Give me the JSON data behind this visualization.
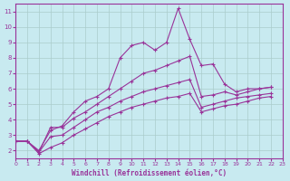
{
  "title": "",
  "xlabel": "Windchill (Refroidissement éolien,°C)",
  "ylabel": "",
  "background_color": "#c8eaf0",
  "line_color": "#993399",
  "grid_color": "#aacccc",
  "xlim": [
    0,
    23
  ],
  "ylim": [
    1.5,
    11.5
  ],
  "yticks": [
    2,
    3,
    4,
    5,
    6,
    7,
    8,
    9,
    10,
    11
  ],
  "xticks": [
    0,
    1,
    2,
    3,
    4,
    5,
    6,
    7,
    8,
    9,
    10,
    11,
    12,
    13,
    14,
    15,
    16,
    17,
    18,
    19,
    20,
    21,
    22,
    23
  ],
  "series": [
    {
      "x": [
        0,
        1,
        2,
        3,
        4,
        5,
        6,
        7,
        8,
        9,
        10,
        11,
        12,
        13,
        14,
        15,
        16,
        17,
        18,
        19,
        20,
        21,
        22
      ],
      "y": [
        2.6,
        2.6,
        2.0,
        3.3,
        3.6,
        4.5,
        5.2,
        5.5,
        6.0,
        8.0,
        8.8,
        9.0,
        8.5,
        9.0,
        11.2,
        9.2,
        7.5,
        7.6,
        6.3,
        5.8,
        6.0,
        6.0,
        6.1
      ]
    },
    {
      "x": [
        0,
        1,
        2,
        3,
        4,
        5,
        6,
        7,
        8,
        9,
        10,
        11,
        12,
        13,
        14,
        15,
        16,
        17,
        18,
        19,
        20,
        21,
        22
      ],
      "y": [
        2.6,
        2.6,
        1.9,
        3.5,
        3.5,
        4.1,
        4.5,
        5.0,
        5.5,
        6.0,
        6.5,
        7.0,
        7.2,
        7.5,
        7.8,
        8.1,
        5.5,
        5.6,
        5.8,
        5.6,
        5.8,
        6.0,
        6.1
      ]
    },
    {
      "x": [
        0,
        1,
        2,
        3,
        4,
        5,
        6,
        7,
        8,
        9,
        10,
        11,
        12,
        13,
        14,
        15,
        16,
        17,
        18,
        19,
        20,
        21,
        22
      ],
      "y": [
        2.6,
        2.6,
        1.9,
        2.9,
        3.0,
        3.5,
        4.0,
        4.5,
        4.8,
        5.2,
        5.5,
        5.8,
        6.0,
        6.2,
        6.4,
        6.6,
        4.8,
        5.0,
        5.2,
        5.4,
        5.5,
        5.6,
        5.7
      ]
    },
    {
      "x": [
        0,
        1,
        2,
        3,
        4,
        5,
        6,
        7,
        8,
        9,
        10,
        11,
        12,
        13,
        14,
        15,
        16,
        17,
        18,
        19,
        20,
        21,
        22
      ],
      "y": [
        2.6,
        2.6,
        1.8,
        2.2,
        2.5,
        3.0,
        3.4,
        3.8,
        4.2,
        4.5,
        4.8,
        5.0,
        5.2,
        5.4,
        5.5,
        5.7,
        4.5,
        4.7,
        4.9,
        5.0,
        5.2,
        5.4,
        5.5
      ]
    }
  ]
}
